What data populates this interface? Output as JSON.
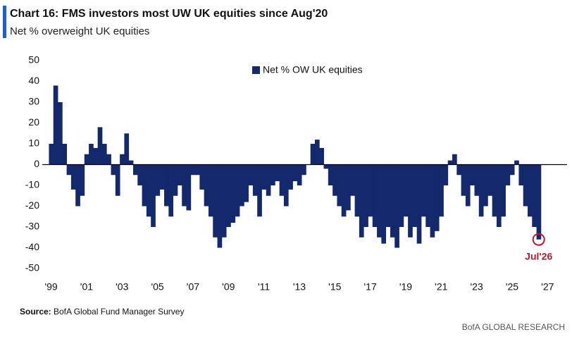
{
  "chart_data": {
    "type": "bar",
    "title": "Chart 16: FMS investors most UW UK equities since Aug'20",
    "subtitle": "Net % overweight UK equities",
    "source_label": "Source:",
    "source": "BofA Global Fund Manager Survey",
    "footer": "BofA GLOBAL RESEARCH",
    "annotation": "Jul'26",
    "x": [
      1999,
      1999.25,
      1999.5,
      1999.75,
      2000,
      2000.25,
      2000.5,
      2000.75,
      2001,
      2001.25,
      2001.5,
      2001.75,
      2002,
      2002.25,
      2002.5,
      2002.75,
      2003,
      2003.25,
      2003.5,
      2003.75,
      2004,
      2004.25,
      2004.5,
      2004.75,
      2005,
      2005.25,
      2005.5,
      2005.75,
      2006,
      2006.25,
      2006.5,
      2006.75,
      2007,
      2007.25,
      2007.5,
      2007.75,
      2008,
      2008.25,
      2008.5,
      2008.75,
      2009,
      2009.25,
      2009.5,
      2009.75,
      2010,
      2010.25,
      2010.5,
      2010.75,
      2011,
      2011.25,
      2011.5,
      2011.75,
      2012,
      2012.25,
      2012.5,
      2012.75,
      2013,
      2013.25,
      2013.5,
      2013.75,
      2014,
      2014.25,
      2014.5,
      2014.75,
      2015,
      2015.25,
      2015.5,
      2015.75,
      2016,
      2016.25,
      2016.5,
      2016.75,
      2017,
      2017.25,
      2017.5,
      2017.75,
      2018,
      2018.25,
      2018.5,
      2018.75,
      2019,
      2019.25,
      2019.5,
      2019.75,
      2020,
      2020.25,
      2020.5,
      2020.75,
      2021,
      2021.25,
      2021.5,
      2021.75,
      2022,
      2022.25,
      2022.5,
      2022.75,
      2023,
      2023.25,
      2023.5,
      2023.75,
      2024,
      2024.25,
      2024.5,
      2024.75,
      2025,
      2025.25,
      2025.5,
      2025.75,
      2026,
      2026.25,
      2026.5
    ],
    "series": [
      {
        "name": "Net % OW UK equities",
        "color": "#13296b",
        "values": [
          10,
          38,
          30,
          10,
          -5,
          -12,
          -20,
          -15,
          5,
          10,
          8,
          18,
          10,
          5,
          -5,
          -15,
          5,
          15,
          2,
          -5,
          -10,
          -20,
          -25,
          -30,
          -15,
          -12,
          -20,
          -25,
          -15,
          -10,
          -20,
          -22,
          -5,
          -5,
          -12,
          -20,
          -25,
          -35,
          -40,
          -35,
          -30,
          -28,
          -25,
          -20,
          -18,
          -10,
          -15,
          -25,
          -12,
          -15,
          -10,
          -8,
          -15,
          -20,
          -12,
          -8,
          -10,
          -5,
          0,
          10,
          12,
          8,
          -2,
          -10,
          -15,
          -20,
          -25,
          -22,
          -15,
          -25,
          -35,
          -30,
          -25,
          -30,
          -35,
          -38,
          -30,
          -35,
          -40,
          -30,
          -25,
          -35,
          -30,
          -38,
          -25,
          -30,
          -35,
          -32,
          -25,
          -10,
          2,
          5,
          -5,
          -15,
          -20,
          -10,
          -15,
          -25,
          -20,
          -15,
          -25,
          -30,
          -25,
          -10,
          -5,
          2,
          -10,
          -20,
          -25,
          -30,
          -36
        ]
      }
    ],
    "xlim": [
      1998.5,
      2028.1
    ],
    "xticks": [
      {
        "value": 1999,
        "label": "'99"
      },
      {
        "value": 2001,
        "label": "'01"
      },
      {
        "value": 2003,
        "label": "'03"
      },
      {
        "value": 2005,
        "label": "'05"
      },
      {
        "value": 2007,
        "label": "'07"
      },
      {
        "value": 2009,
        "label": "'09"
      },
      {
        "value": 2011,
        "label": "'11"
      },
      {
        "value": 2013,
        "label": "'13"
      },
      {
        "value": 2015,
        "label": "'15"
      },
      {
        "value": 2017,
        "label": "'17"
      },
      {
        "value": 2019,
        "label": "'19"
      },
      {
        "value": 2021,
        "label": "'21"
      },
      {
        "value": 2023,
        "label": "'23"
      },
      {
        "value": 2025,
        "label": "'25"
      },
      {
        "value": 2027,
        "label": "'27"
      }
    ],
    "ylim": [
      -50,
      50
    ],
    "yticks": [
      -50,
      -40,
      -30,
      -20,
      -10,
      0,
      10,
      20,
      30,
      40,
      50
    ]
  }
}
